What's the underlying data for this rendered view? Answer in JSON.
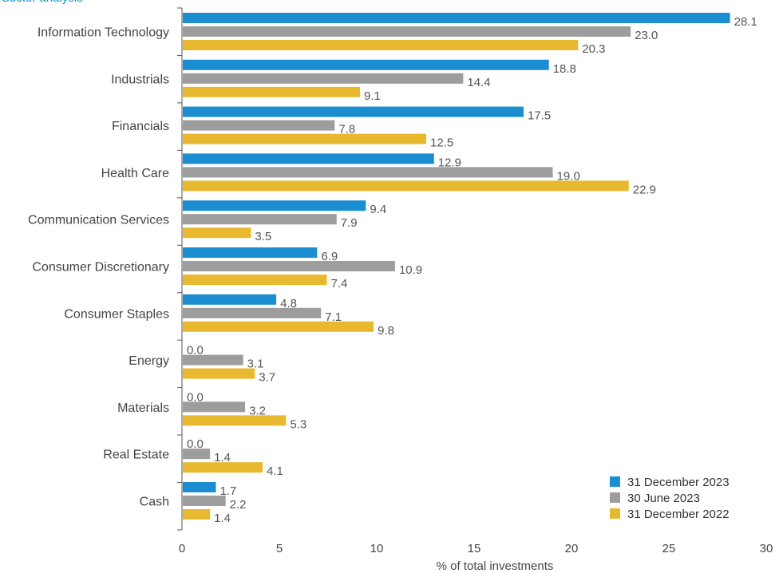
{
  "chart_data": {
    "type": "bar",
    "orientation": "horizontal",
    "title": "Sector analysis",
    "xlabel": "% of total investments",
    "ylabel": "",
    "xlim": [
      0,
      30
    ],
    "xticks": [
      0,
      5,
      10,
      15,
      20,
      25,
      30
    ],
    "grid": false,
    "legend_position": "bottom-right",
    "categories": [
      "Information Technology",
      "Industrials",
      "Financials",
      "Health Care",
      "Communication Services",
      "Consumer Discretionary",
      "Consumer Staples",
      "Energy",
      "Materials",
      "Real Estate",
      "Cash"
    ],
    "series": [
      {
        "name": "31 December 2023",
        "color": "#1a8ed1",
        "values": [
          28.1,
          18.8,
          17.5,
          12.9,
          9.4,
          6.9,
          4.8,
          0.0,
          0.0,
          0.0,
          1.7
        ],
        "labels": [
          "28.1",
          "18.8",
          "17.5",
          "12.9",
          "9.4",
          "6.9",
          "4.8",
          "0.0",
          "0.0",
          "0.0",
          "1.7"
        ]
      },
      {
        "name": "30 June 2023",
        "color": "#9d9d9d",
        "values": [
          23.0,
          14.4,
          7.8,
          19.0,
          7.9,
          10.9,
          7.1,
          3.1,
          3.2,
          1.4,
          2.2
        ],
        "labels": [
          "23.0",
          "14.4",
          "7.8",
          "19.0",
          "7.9",
          "10.9",
          "7.1",
          "3.1",
          "3.2",
          "1.4",
          "2.2"
        ]
      },
      {
        "name": "31 December 2022",
        "color": "#e8b92f",
        "values": [
          20.3,
          9.1,
          12.5,
          22.9,
          3.5,
          7.4,
          9.8,
          3.7,
          5.3,
          4.1,
          1.4
        ],
        "labels": [
          "20.3",
          "9.1",
          "12.5",
          "22.9",
          "3.5",
          "7.4",
          "9.8",
          "3.7",
          "5.3",
          "4.1",
          "1.4"
        ]
      }
    ]
  }
}
